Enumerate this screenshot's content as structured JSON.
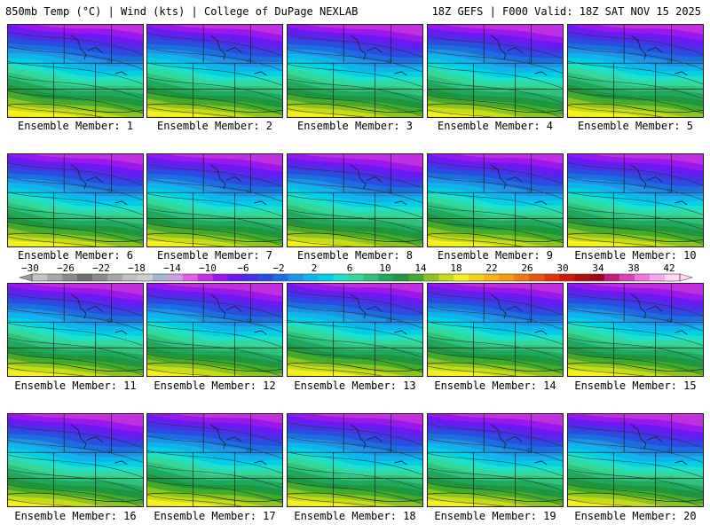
{
  "header": {
    "title": "850mb Temp (°C) | Wind (kts) | College of DuPage NEXLAB",
    "run_info": "18Z GEFS | F000 Valid: 18Z SAT NOV 15 2025"
  },
  "members": [
    {
      "label": "Ensemble Member: 1"
    },
    {
      "label": "Ensemble Member: 2"
    },
    {
      "label": "Ensemble Member: 3"
    },
    {
      "label": "Ensemble Member: 4"
    },
    {
      "label": "Ensemble Member: 5"
    },
    {
      "label": "Ensemble Member: 6"
    },
    {
      "label": "Ensemble Member: 7"
    },
    {
      "label": "Ensemble Member: 8"
    },
    {
      "label": "Ensemble Member: 9"
    },
    {
      "label": "Ensemble Member: 10"
    },
    {
      "label": "Ensemble Member: 11"
    },
    {
      "label": "Ensemble Member: 12"
    },
    {
      "label": "Ensemble Member: 13"
    },
    {
      "label": "Ensemble Member: 14"
    },
    {
      "label": "Ensemble Member: 15"
    },
    {
      "label": "Ensemble Member: 16"
    },
    {
      "label": "Ensemble Member: 17"
    },
    {
      "label": "Ensemble Member: 18"
    },
    {
      "label": "Ensemble Member: 19"
    },
    {
      "label": "Ensemble Member: 20"
    }
  ],
  "colorbar": {
    "tick_labels": [
      "-30",
      "-26",
      "-22",
      "-18",
      "-14",
      "-10",
      "-6",
      "-2",
      "2",
      "6",
      "10",
      "14",
      "18",
      "22",
      "26",
      "30",
      "34",
      "38",
      "42"
    ],
    "colors": [
      "#c4c4c4",
      "#a8a8a8",
      "#8c8c8c",
      "#6e6e6e",
      "#8a8a8a",
      "#a5a5a5",
      "#c0c0c0",
      "#cfcfcf",
      "#9fb5d0",
      "#c8a2e0",
      "#e060e0",
      "#c030e0",
      "#9a18ec",
      "#6a1af0",
      "#4b2ee8",
      "#2a4de0",
      "#1f6ee0",
      "#1e93e6",
      "#0fb4ec",
      "#00cfe6",
      "#1ee0c8",
      "#32d89a",
      "#2ec27a",
      "#1ea85c",
      "#1e9640",
      "#43ab2b",
      "#8cc420",
      "#c8dc16",
      "#f2f01e",
      "#f5d21a",
      "#f5b414",
      "#f09b12",
      "#ec7a10",
      "#e8560e",
      "#e2320c",
      "#cc1a0c",
      "#b00e10",
      "#a0081a",
      "#c0207a",
      "#d844b4",
      "#ee78d8",
      "#f8a8ea",
      "#fcd8f4"
    ],
    "left_arrow_color": "#9a9a9a",
    "right_arrow_color": "#ffd6f5"
  },
  "temperature_bands": [
    "#c030e0",
    "#9a18ec",
    "#6a1af0",
    "#4b2ee8",
    "#2a4de0",
    "#1f6ee0",
    "#1e93e6",
    "#0fb4ec",
    "#00cfe6",
    "#1ee0c8",
    "#32d89a",
    "#2ec27a",
    "#1ea85c",
    "#1e9640",
    "#43ab2b",
    "#8cc420",
    "#c8dc16",
    "#f2f01e",
    "#f5d21a",
    "#f5b414"
  ]
}
